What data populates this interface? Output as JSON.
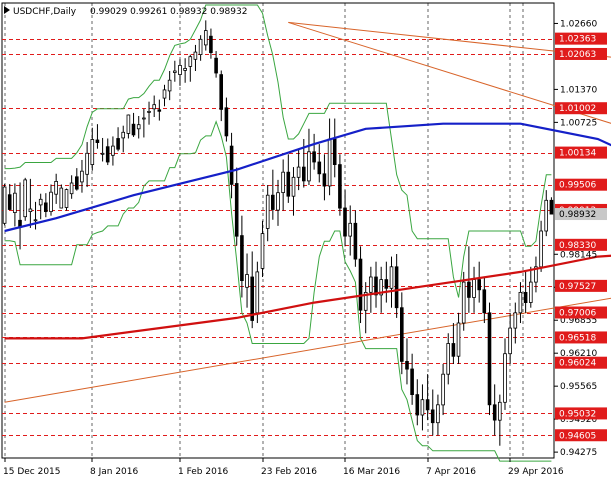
{
  "header": {
    "symbol": "USDCHF,Daily",
    "ohlc": "0.99029 0.99261 0.98932 0.98932"
  },
  "colors": {
    "up_bar": "#000000",
    "ma_blue": "#1520c8",
    "ma_red": "#d01010",
    "band": "#3aa640",
    "trendline": "#d8642a",
    "level_line": "#e01b1b",
    "level_label_bg": "#e01b1b",
    "current_label_bg": "#c8c8c8",
    "grid": "#000000"
  },
  "chart_data": {
    "type": "candlestick",
    "title": "USDCHF,Daily",
    "ylim": [
      0.9416,
      1.0306
    ],
    "y_ticks": [
      "1.02660",
      "1.01370",
      "1.00725",
      "0.98145",
      "0.97500",
      "0.96855",
      "0.96210",
      "0.95565",
      "0.94920",
      "0.94275"
    ],
    "x_ticks": [
      "15 Dec 2015",
      "8 Jan 2016",
      "1 Feb 2016",
      "23 Feb 2016",
      "16 Mar 2016",
      "7 Apr 2016",
      "29 Apr 2016"
    ],
    "horizontal_levels": [
      "1.02363",
      "1.02063",
      "1.01002",
      "1.00134",
      "0.99506",
      "0.99012",
      "0.98330",
      "0.97527",
      "0.97006",
      "0.96518",
      "0.96024",
      "0.95032",
      "0.94605"
    ],
    "current_price_label": "0.98932",
    "moving_averages": [
      {
        "color": "blue",
        "points": [
          [
            0.986,
            0
          ],
          [
            0.9885,
            10
          ],
          [
            0.993,
            25
          ],
          [
            0.998,
            45
          ],
          [
            1.003,
            60
          ],
          [
            1.006,
            70
          ],
          [
            1.007,
            85
          ],
          [
            1.007,
            100
          ],
          [
            1.004,
            115
          ],
          [
            0.997,
            130
          ],
          [
            0.992,
            145
          ],
          [
            0.99,
            155
          ],
          [
            0.987,
            170
          ],
          [
            0.983,
            185
          ],
          [
            0.979,
            195
          ]
        ]
      },
      {
        "color": "red",
        "points": [
          [
            0.965,
            0
          ],
          [
            0.965,
            15
          ],
          [
            0.967,
            30
          ],
          [
            0.969,
            45
          ],
          [
            0.972,
            60
          ],
          [
            0.975,
            80
          ],
          [
            0.978,
            100
          ],
          [
            0.981,
            115
          ],
          [
            0.982,
            130
          ],
          [
            0.983,
            150
          ],
          [
            0.9835,
            165
          ],
          [
            0.9835,
            185
          ],
          [
            0.983,
            195
          ]
        ]
      }
    ],
    "trendlines": [
      {
        "from": [
          55,
          1.0268
        ],
        "to": [
          182,
          1.013
        ]
      },
      {
        "from": [
          55,
          1.0268
        ],
        "to": [
          197,
          0.982
        ]
      },
      {
        "from": [
          0,
          0.9525
        ],
        "to": [
          205,
          0.988
        ]
      }
    ],
    "candles": [
      [
        0.9875,
        0.9952,
        0.9871,
        0.9946
      ],
      [
        0.9931,
        0.9952,
        0.9901,
        0.9902
      ],
      [
        0.9896,
        0.9953,
        0.9869,
        0.9934
      ],
      [
        0.9881,
        0.9955,
        0.9824,
        0.9869
      ],
      [
        0.9888,
        0.9964,
        0.988,
        0.996
      ],
      [
        0.9898,
        0.9962,
        0.9866,
        0.9903
      ],
      [
        0.9881,
        0.9917,
        0.9863,
        0.9882
      ],
      [
        0.9911,
        0.9933,
        0.9883,
        0.9922
      ],
      [
        0.9915,
        0.9934,
        0.9887,
        0.9898
      ],
      [
        0.9898,
        0.9951,
        0.989,
        0.9936
      ],
      [
        0.9932,
        0.9972,
        0.9913,
        0.9957
      ],
      [
        0.9905,
        0.9951,
        0.9904,
        0.9944
      ],
      [
        0.9906,
        0.9943,
        0.99,
        0.9941
      ],
      [
        0.9933,
        0.9969,
        0.9923,
        0.9954
      ],
      [
        0.9966,
        0.9983,
        0.9939,
        0.9942
      ],
      [
        0.9956,
        0.9999,
        0.9935,
        0.9977
      ],
      [
        0.9971,
        1.0034,
        0.9946,
        1.0012
      ],
      [
        0.999,
        1.0062,
        0.9978,
        1.0039
      ],
      [
        1.0038,
        1.0069,
        1.0021,
        1.0033
      ],
      [
        1.0011,
        1.0042,
        0.9996,
        1.0012
      ],
      [
        1.0025,
        1.0041,
        0.9989,
        0.9995
      ],
      [
        1.0008,
        1.0045,
        0.9988,
        1.0026
      ],
      [
        1.0041,
        1.0063,
        1.0016,
        1.002
      ],
      [
        1.0042,
        1.0066,
        1.0014,
        1.0053
      ],
      [
        1.0051,
        1.0088,
        1.0041,
        1.0087
      ],
      [
        1.0069,
        1.0091,
        1.0044,
        1.0048
      ],
      [
        1.006,
        1.0085,
        1.0041,
        1.0068
      ],
      [
        1.0079,
        1.0099,
        1.0043,
        1.0081
      ],
      [
        1.0093,
        1.0113,
        1.0068,
        1.0094
      ],
      [
        1.0099,
        1.0125,
        1.0083,
        1.0107
      ],
      [
        1.0097,
        1.0117,
        1.0076,
        1.0094
      ],
      [
        1.012,
        1.0146,
        1.0104,
        1.0136
      ],
      [
        1.0134,
        1.0173,
        1.0116,
        1.0155
      ],
      [
        1.017,
        1.0193,
        1.0152,
        1.0173
      ],
      [
        1.0166,
        1.0196,
        1.0144,
        1.0184
      ],
      [
        1.0174,
        1.0198,
        1.015,
        1.0178
      ],
      [
        1.0182,
        1.0205,
        1.0152,
        1.0201
      ],
      [
        1.0196,
        1.0224,
        1.0173,
        1.021
      ],
      [
        1.0205,
        1.0243,
        1.0193,
        1.0235
      ],
      [
        1.0224,
        1.0272,
        1.0213,
        1.0252
      ],
      [
        1.0241,
        1.0256,
        1.0197,
        1.0209
      ],
      [
        1.0198,
        1.0212,
        1.016,
        1.0169
      ],
      [
        1.0166,
        1.0174,
        1.0075,
        1.0098
      ],
      [
        1.0101,
        1.0121,
        1.0035,
        1.0046
      ],
      [
        1.0026,
        1.0052,
        0.9924,
        0.9951
      ],
      [
        0.9953,
        0.9984,
        0.9832,
        0.985
      ],
      [
        0.9851,
        0.989,
        0.973,
        0.9763
      ],
      [
        0.975,
        0.9816,
        0.971,
        0.9775
      ],
      [
        0.977,
        0.982,
        0.967,
        0.9685
      ],
      [
        0.97,
        0.98,
        0.968,
        0.978
      ],
      [
        0.9787,
        0.988,
        0.977,
        0.9855
      ],
      [
        0.9865,
        0.995,
        0.984,
        0.993
      ],
      [
        0.993,
        0.998,
        0.9882,
        0.9902
      ],
      [
        0.9901,
        0.996,
        0.987,
        0.9935
      ],
      [
        0.9935,
        1.0,
        0.99,
        0.9975
      ],
      [
        0.9975,
        1.001,
        0.9915,
        0.9928
      ],
      [
        0.9928,
        0.9985,
        0.989,
        0.9965
      ],
      [
        0.9965,
        1.002,
        0.994,
        0.9985
      ],
      [
        0.9985,
        1.004,
        0.9945,
        0.9958
      ],
      [
        0.9958,
        1.006,
        0.995,
        1.0015
      ],
      [
        1.0015,
        1.005,
        0.998,
        0.9995
      ],
      [
        0.9995,
        1.003,
        0.9955,
        0.9972
      ],
      [
        0.9972,
        1.001,
        0.992,
        0.9948
      ],
      [
        0.9948,
        1.008,
        0.993,
        1.004
      ],
      [
        1.004,
        1.008,
        0.9965,
        0.999
      ],
      [
        0.999,
        1.001,
        0.989,
        0.9905
      ],
      [
        0.9905,
        0.994,
        0.983,
        0.985
      ],
      [
        0.985,
        0.991,
        0.9812,
        0.9875
      ],
      [
        0.9875,
        0.99,
        0.979,
        0.9805
      ],
      [
        0.9805,
        0.983,
        0.968,
        0.9705
      ],
      [
        0.9705,
        0.976,
        0.966,
        0.974
      ],
      [
        0.974,
        0.979,
        0.97,
        0.977
      ],
      [
        0.977,
        0.98,
        0.971,
        0.9735
      ],
      [
        0.9735,
        0.979,
        0.97,
        0.9765
      ],
      [
        0.9765,
        0.98,
        0.972,
        0.9748
      ],
      [
        0.9748,
        0.981,
        0.971,
        0.979
      ],
      [
        0.979,
        0.9815,
        0.969,
        0.971
      ],
      [
        0.971,
        0.974,
        0.958,
        0.9605
      ],
      [
        0.9605,
        0.965,
        0.956,
        0.959
      ],
      [
        0.959,
        0.962,
        0.952,
        0.954
      ],
      [
        0.954,
        0.957,
        0.948,
        0.95
      ],
      [
        0.95,
        0.956,
        0.947,
        0.953
      ],
      [
        0.953,
        0.958,
        0.949,
        0.951
      ],
      [
        0.951,
        0.955,
        0.946,
        0.9485
      ],
      [
        0.9485,
        0.954,
        0.946,
        0.952
      ],
      [
        0.952,
        0.96,
        0.95,
        0.958
      ],
      [
        0.958,
        0.966,
        0.956,
        0.964
      ],
      [
        0.964,
        0.968,
        0.96,
        0.9615
      ],
      [
        0.9615,
        0.97,
        0.96,
        0.968
      ],
      [
        0.968,
        0.978,
        0.9665,
        0.976
      ],
      [
        0.976,
        0.983,
        0.97,
        0.973
      ],
      [
        0.973,
        0.979,
        0.97,
        0.9765
      ],
      [
        0.9765,
        0.98,
        0.972,
        0.9745
      ],
      [
        0.9745,
        0.977,
        0.968,
        0.97
      ],
      [
        0.97,
        0.972,
        0.95,
        0.952
      ],
      [
        0.952,
        0.956,
        0.946,
        0.949
      ],
      [
        0.949,
        0.954,
        0.944,
        0.9525
      ],
      [
        0.9525,
        0.965,
        0.951,
        0.962
      ],
      [
        0.962,
        0.97,
        0.96,
        0.967
      ],
      [
        0.967,
        0.972,
        0.964,
        0.97
      ],
      [
        0.97,
        0.976,
        0.968,
        0.974
      ],
      [
        0.974,
        0.978,
        0.97,
        0.972
      ],
      [
        0.972,
        0.979,
        0.971,
        0.976
      ],
      [
        0.976,
        0.981,
        0.974,
        0.979
      ],
      [
        0.979,
        0.988,
        0.978,
        0.986
      ],
      [
        0.986,
        0.994,
        0.985,
        0.992
      ],
      [
        0.992,
        0.9926,
        0.9893,
        0.9893
      ]
    ]
  }
}
